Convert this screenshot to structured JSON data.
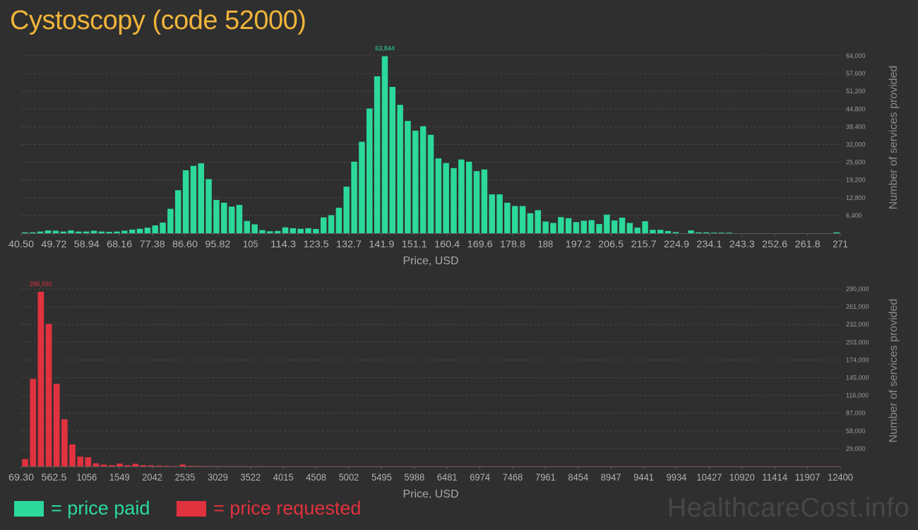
{
  "title": "Cystoscopy (code 52000)",
  "legend": {
    "paid_label": "= price paid",
    "requested_label": "= price requested",
    "paid_color": "#2bd99b",
    "requested_color": "#e0323f"
  },
  "watermark": "HealthcareCost.info",
  "chart_data": [
    {
      "type": "bar",
      "name": "price paid",
      "color": "#2bd99b",
      "xlabel": "Price, USD",
      "ylabel": "Number of services provided",
      "xlim": [
        40.5,
        271
      ],
      "ylim": [
        0,
        64000
      ],
      "peak_label": "63,844",
      "x_tick_labels": [
        "40.50",
        "49.72",
        "58.94",
        "68.16",
        "77.38",
        "86.60",
        "95.82",
        "105",
        "114.3",
        "123.5",
        "132.7",
        "141.9",
        "151.1",
        "160.4",
        "169.6",
        "178.8",
        "188",
        "197.2",
        "206.5",
        "215.7",
        "224.9",
        "234.1",
        "243.3",
        "252.6",
        "261.8",
        "271"
      ],
      "y_tick_labels": [
        "64,000",
        "57,600",
        "51,200",
        "44,800",
        "38,400",
        "32,000",
        "25,600",
        "19,200",
        "12,800",
        "6,400"
      ],
      "y_ticks": [
        64000,
        57600,
        51200,
        44800,
        38400,
        32000,
        25600,
        19200,
        12800,
        6400
      ],
      "values": [
        300,
        300,
        600,
        1000,
        900,
        600,
        1000,
        600,
        600,
        900,
        600,
        500,
        600,
        900,
        1300,
        1600,
        2000,
        2800,
        3800,
        8800,
        15500,
        22700,
        24300,
        25200,
        19500,
        12000,
        11000,
        9600,
        10200,
        4400,
        3200,
        1100,
        700,
        800,
        2100,
        1800,
        1600,
        1800,
        1500,
        5700,
        6500,
        9200,
        16800,
        25800,
        33000,
        45000,
        56600,
        63844,
        52800,
        46300,
        40500,
        37000,
        38600,
        35500,
        27000,
        25300,
        23500,
        26600,
        25800,
        22400,
        23000,
        14000,
        14000,
        11000,
        9800,
        9800,
        7200,
        8300,
        4200,
        3700,
        5800,
        5400,
        4000,
        4500,
        4700,
        3300,
        6700,
        4600,
        5600,
        3700,
        2000,
        4300,
        1200,
        1200,
        800,
        400,
        0,
        1000,
        300,
        300,
        200,
        200,
        200,
        0,
        0,
        0,
        0,
        0,
        0,
        0,
        0,
        0,
        0,
        0,
        0,
        0,
        300
      ]
    },
    {
      "type": "bar",
      "name": "price requested",
      "color": "#e0323f",
      "xlabel": "Price, USD",
      "ylabel": "Number of services provided",
      "xlim": [
        69.3,
        12400
      ],
      "ylim": [
        0,
        290000
      ],
      "peak_label": "285,591",
      "x_tick_labels": [
        "69.30",
        "562.5",
        "1056",
        "1549",
        "2042",
        "2535",
        "3029",
        "3522",
        "4015",
        "4508",
        "5002",
        "5495",
        "5988",
        "6481",
        "6974",
        "7468",
        "7961",
        "8454",
        "8947",
        "9441",
        "9934",
        "10427",
        "10920",
        "11414",
        "11907",
        "12400"
      ],
      "y_tick_labels": [
        "290,000",
        "261,000",
        "232,000",
        "203,000",
        "174,000",
        "145,000",
        "116,000",
        "87,000",
        "58,000",
        "29,000"
      ],
      "y_ticks": [
        290000,
        261000,
        232000,
        203000,
        174000,
        145000,
        116000,
        87000,
        58000,
        29000
      ],
      "values": [
        12000,
        143000,
        285591,
        233000,
        135000,
        77000,
        36000,
        16000,
        15000,
        5000,
        3000,
        2000,
        4500,
        1800,
        4200,
        2000,
        1700,
        1200,
        1000,
        600,
        3000,
        900,
        800,
        600,
        500,
        400,
        400,
        400,
        400,
        300,
        400,
        300,
        300,
        300,
        300,
        300,
        300,
        300,
        300,
        300,
        300,
        300,
        300,
        300,
        300,
        300,
        300,
        300,
        300,
        300,
        300,
        300,
        300,
        300,
        300,
        300,
        300,
        300,
        300,
        300,
        300,
        300,
        300,
        300,
        300,
        300,
        300,
        300,
        300,
        300,
        300,
        300,
        300,
        300,
        300,
        300,
        300,
        300,
        300,
        300,
        300,
        300,
        300,
        300,
        300,
        300,
        300,
        300,
        300,
        300,
        300,
        300,
        300,
        300,
        300,
        300,
        300,
        300,
        300,
        300,
        300,
        300,
        300,
        300
      ]
    }
  ]
}
